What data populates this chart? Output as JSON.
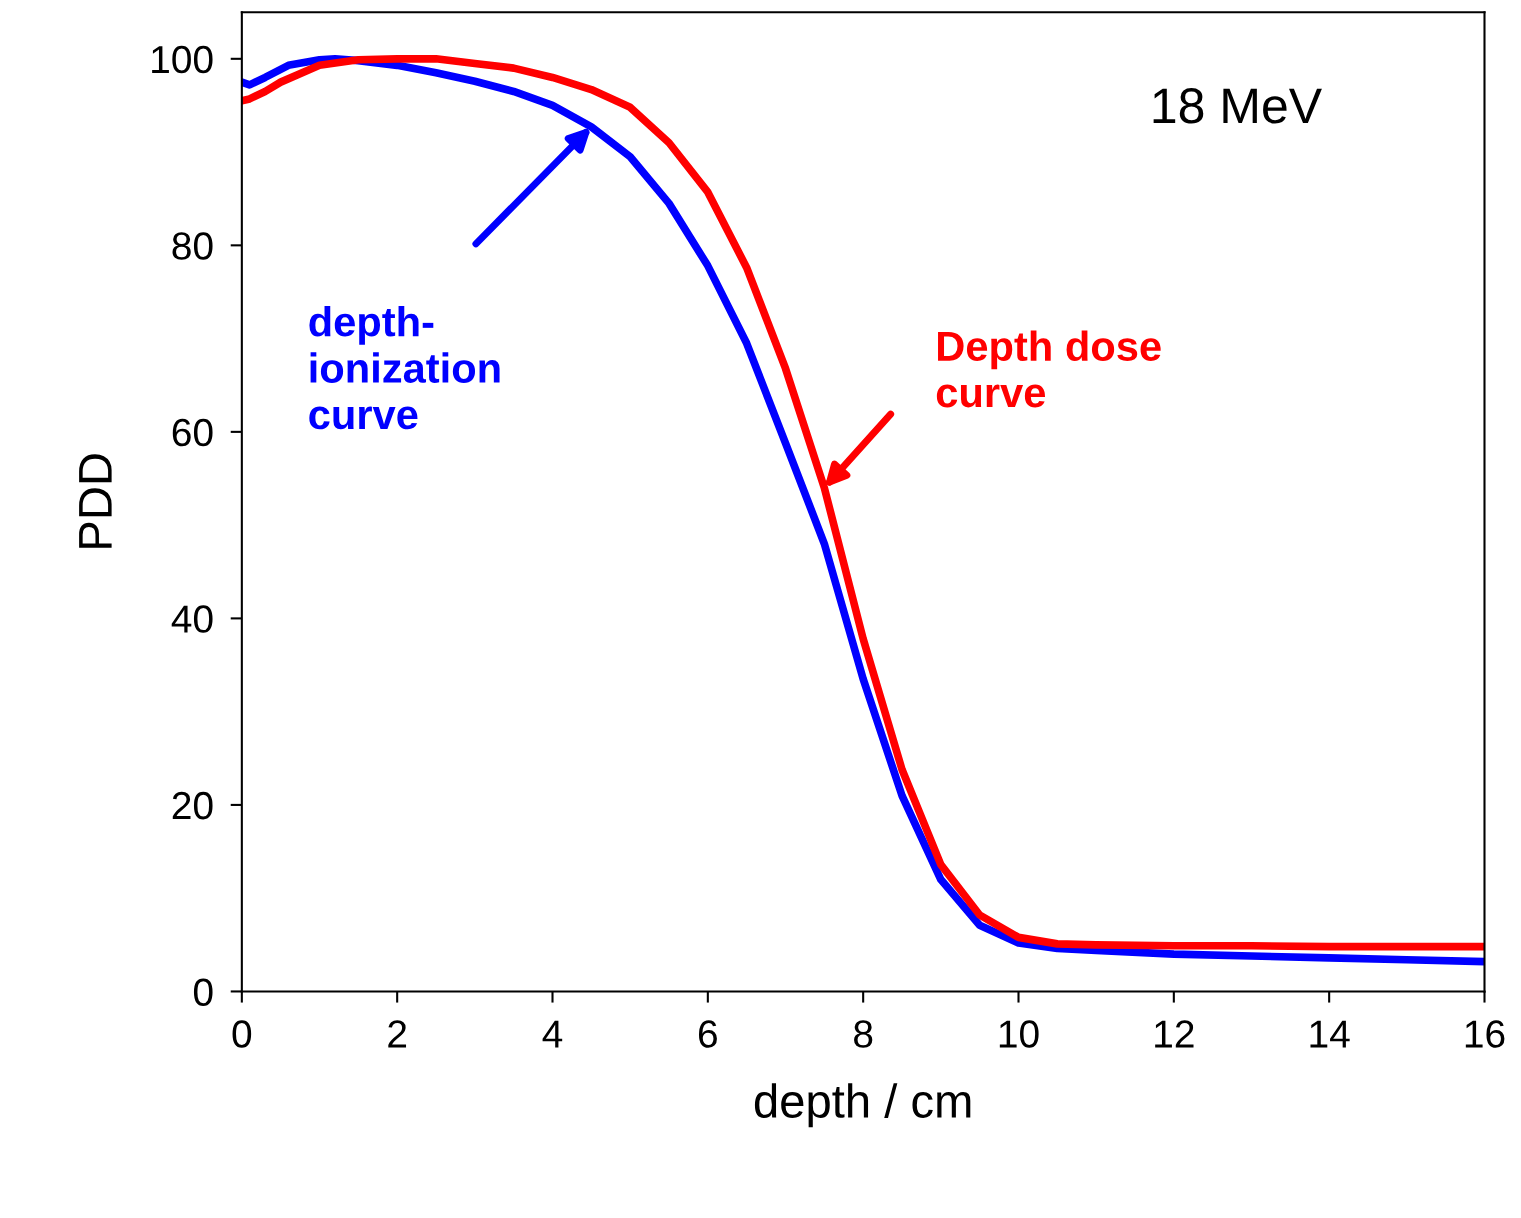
{
  "chart_data": {
    "type": "line",
    "xlabel": "depth / cm",
    "ylabel": "PDD",
    "annotations": [
      "18 MeV"
    ],
    "xlim": [
      0,
      16
    ],
    "xticks": [
      0,
      2,
      4,
      6,
      8,
      10,
      12,
      14,
      16
    ],
    "ylim": [
      0,
      105
    ],
    "yticks": [
      0,
      20,
      40,
      60,
      80,
      100
    ],
    "grid": false,
    "legend": false,
    "marker": "none",
    "line_style": "solid",
    "series": [
      {
        "name": "depth-\nionization\ncurve",
        "color": "#0000ff",
        "x": [
          0,
          0.1,
          0.3,
          0.6,
          1.0,
          1.2,
          1.5,
          2.0,
          2.5,
          3.0,
          3.5,
          4.0,
          4.5,
          5.0,
          5.5,
          6.0,
          6.5,
          7.0,
          7.5,
          8.0,
          8.5,
          9.0,
          9.5,
          10.0,
          10.5,
          11,
          12,
          13,
          14,
          15,
          16
        ],
        "values": [
          97.5,
          97.2,
          98.0,
          99.3,
          99.9,
          100,
          99.8,
          99.3,
          98.5,
          97.6,
          96.5,
          95.0,
          92.7,
          89.5,
          84.5,
          77.8,
          69.5,
          58.8,
          48.0,
          33.5,
          21.0,
          12.0,
          7.1,
          5.2,
          4.6,
          4.4,
          4.0,
          3.8,
          3.6,
          3.4,
          3.2
        ]
      },
      {
        "name": "Depth dose\ncurve",
        "color": "#ff0000",
        "x": [
          0,
          0.1,
          0.3,
          0.5,
          1.0,
          1.5,
          2.0,
          2.5,
          3.0,
          3.5,
          4.0,
          4.5,
          5.0,
          5.5,
          6.0,
          6.5,
          7.0,
          7.5,
          8.0,
          8.5,
          9.0,
          9.5,
          10.0,
          10.5,
          11,
          12,
          13,
          14,
          15,
          16
        ],
        "values": [
          95.5,
          95.7,
          96.5,
          97.5,
          99.3,
          99.9,
          100,
          100,
          99.5,
          99.0,
          98.0,
          96.7,
          94.8,
          91.0,
          85.7,
          77.6,
          66.8,
          54.0,
          37.8,
          23.8,
          13.6,
          8.2,
          5.8,
          5.1,
          5.0,
          4.9,
          4.9,
          4.8,
          4.8,
          4.8
        ]
      }
    ]
  }
}
